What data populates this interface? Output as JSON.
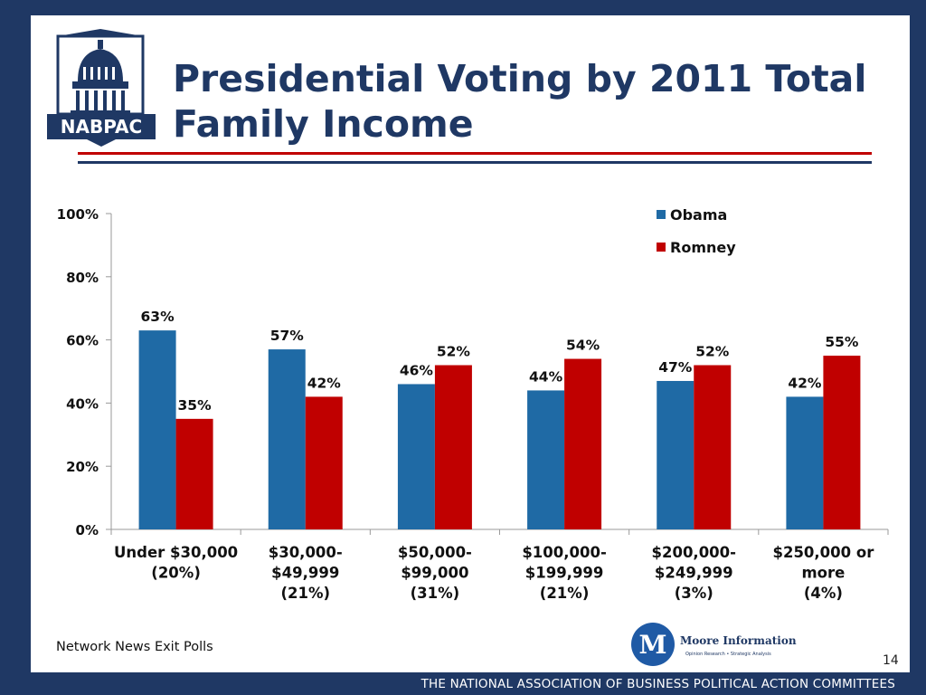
{
  "slide": {
    "title": "Presidential Voting by 2011 Total Family Income",
    "logo_text": "NABPAC",
    "source_note": "Network News Exit Polls",
    "page_number": "14",
    "footer": "THE NATIONAL ASSOCIATION OF BUSINESS POLITICAL ACTION COMMITTEES",
    "moore_logo_line1": "Moore Information",
    "moore_logo_line2": "Opinion Research • Strategic Analysis",
    "colors": {
      "navy": "#1f3864",
      "red": "#c00000",
      "obama": "#1f6aa5",
      "romney": "#c00000"
    }
  },
  "chart_data": {
    "type": "bar",
    "categories": [
      [
        "Under $30,000",
        "(20%)"
      ],
      [
        "$30,000-",
        "$49,999",
        "(21%)"
      ],
      [
        "$50,000-",
        "$99,000",
        "(31%)"
      ],
      [
        "$100,000-",
        "$199,999",
        "(21%)"
      ],
      [
        "$200,000-",
        "$249,999",
        "(3%)"
      ],
      [
        "$250,000 or",
        "more",
        "(4%)"
      ]
    ],
    "series": [
      {
        "name": "Obama",
        "color": "#1f6aa5",
        "values": [
          63,
          57,
          46,
          44,
          47,
          42
        ],
        "labels": [
          "63%",
          "57%",
          "46%",
          "44%",
          "47%",
          "42%"
        ]
      },
      {
        "name": "Romney",
        "color": "#c00000",
        "values": [
          35,
          42,
          52,
          54,
          52,
          55
        ],
        "labels": [
          "35%",
          "42%",
          "52%",
          "54%",
          "52%",
          "55%"
        ]
      }
    ],
    "ylim": [
      0,
      100
    ],
    "yticks": [
      "0%",
      "20%",
      "40%",
      "60%",
      "80%",
      "100%"
    ],
    "legend_position": "top-right",
    "grid": false
  }
}
